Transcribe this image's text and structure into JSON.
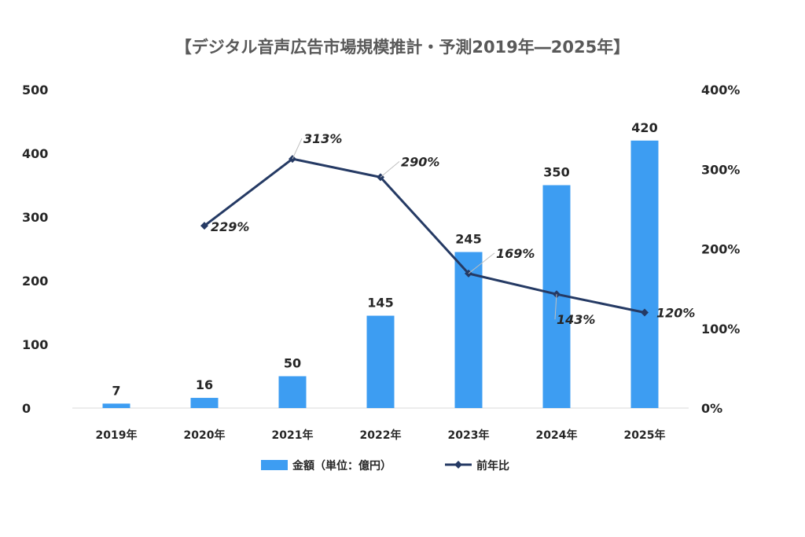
{
  "chart_data": {
    "type": "bar",
    "title": "【デジタル音声広告市場規模推計・予測2019年―2025年】",
    "categories": [
      "2019年",
      "2020年",
      "2021年",
      "2022年",
      "2023年",
      "2024年",
      "2025年"
    ],
    "series": [
      {
        "name": "金額（単位：億円）",
        "type": "bar",
        "axis": "left",
        "values": [
          7,
          16,
          50,
          145,
          245,
          350,
          420
        ],
        "labels": [
          "7",
          "16",
          "50",
          "145",
          "245",
          "350",
          "420"
        ]
      },
      {
        "name": "前年比",
        "type": "line",
        "axis": "right",
        "values": [
          null,
          229,
          313,
          290,
          169,
          143,
          120
        ],
        "labels": [
          "",
          "229%",
          "313%",
          "290%",
          "169%",
          "143%",
          "120%"
        ]
      }
    ],
    "y_left": {
      "min": 0,
      "max": 500,
      "ticks": [
        "0",
        "100",
        "200",
        "300",
        "400",
        "500"
      ]
    },
    "y_right": {
      "min": 0,
      "max": 400,
      "ticks": [
        "0%",
        "100%",
        "200%",
        "300%",
        "400%"
      ]
    },
    "grid": false,
    "legend": "bottom",
    "colors": {
      "bar": "#3d9df2",
      "line": "#253a64",
      "text": "#262626",
      "title": "#595959",
      "axis": "#d9d9d9"
    }
  }
}
